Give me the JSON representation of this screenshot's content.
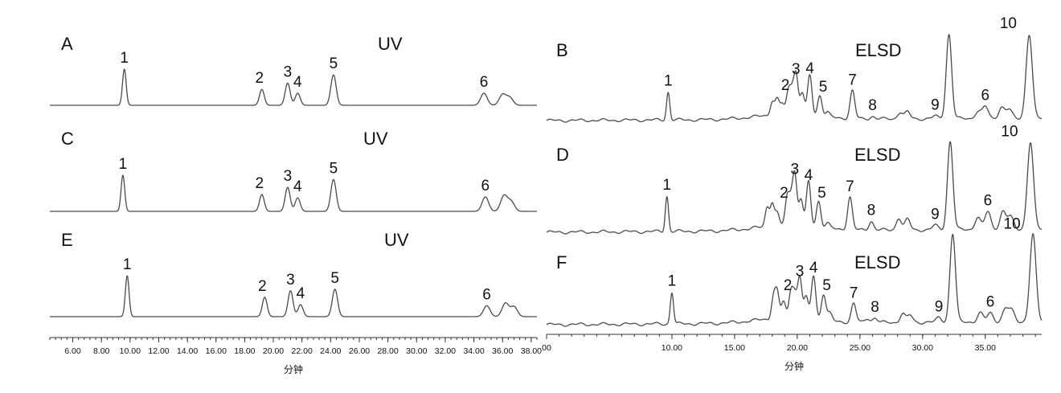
{
  "chart_data": [
    {
      "type": "line",
      "panel": "A",
      "detector": "UV",
      "axis": "left",
      "peaks": [
        {
          "label": "1",
          "t": 9.6,
          "h": 0.75
        },
        {
          "label": "2",
          "t": 19.2,
          "h": 0.33
        },
        {
          "label": "3",
          "t": 21.0,
          "h": 0.46
        },
        {
          "label": "4",
          "t": 21.7,
          "h": 0.25
        },
        {
          "label": "5",
          "t": 24.2,
          "h": 0.63
        },
        {
          "label": "6",
          "t": 34.7,
          "h": 0.25
        }
      ],
      "minor_peaks": [
        {
          "t": 36.0,
          "h": 0.22
        },
        {
          "t": 36.5,
          "h": 0.16
        }
      ]
    },
    {
      "type": "line",
      "panel": "C",
      "detector": "UV",
      "axis": "left",
      "peaks": [
        {
          "label": "1",
          "t": 9.5,
          "h": 0.75
        },
        {
          "label": "2",
          "t": 19.2,
          "h": 0.35
        },
        {
          "label": "3",
          "t": 21.0,
          "h": 0.5
        },
        {
          "label": "4",
          "t": 21.7,
          "h": 0.28
        },
        {
          "label": "5",
          "t": 24.2,
          "h": 0.66
        },
        {
          "label": "6",
          "t": 34.8,
          "h": 0.3
        }
      ],
      "minor_peaks": [
        {
          "t": 36.1,
          "h": 0.32
        },
        {
          "t": 36.6,
          "h": 0.2
        }
      ]
    },
    {
      "type": "line",
      "panel": "E",
      "detector": "UV",
      "axis": "left",
      "peaks": [
        {
          "label": "1",
          "t": 9.8,
          "h": 0.82
        },
        {
          "label": "2",
          "t": 19.4,
          "h": 0.39
        },
        {
          "label": "3",
          "t": 21.2,
          "h": 0.52
        },
        {
          "label": "4",
          "t": 21.9,
          "h": 0.24
        },
        {
          "label": "5",
          "t": 24.3,
          "h": 0.55
        },
        {
          "label": "6",
          "t": 34.9,
          "h": 0.22
        }
      ],
      "minor_peaks": [
        {
          "t": 36.2,
          "h": 0.27
        },
        {
          "t": 36.8,
          "h": 0.2
        }
      ]
    },
    {
      "type": "line",
      "panel": "B",
      "detector": "ELSD",
      "axis": "right",
      "peaks": [
        {
          "label": "1",
          "t": 9.7,
          "h": 0.33
        },
        {
          "label": "2",
          "t": 19.3,
          "h": 0.27
        },
        {
          "label": "3",
          "t": 19.9,
          "h": 0.46
        },
        {
          "label": "4",
          "t": 21.0,
          "h": 0.47
        },
        {
          "label": "5",
          "t": 21.8,
          "h": 0.25
        },
        {
          "label": "7",
          "t": 24.4,
          "h": 0.33
        },
        {
          "label": "8",
          "t": 26.0,
          "h": 0.03
        },
        {
          "label": "9",
          "t": 31.0,
          "h": 0.03
        },
        {
          "label": "6",
          "t": 35.0,
          "h": 0.14
        },
        {
          "label": "10",
          "t": 38.5,
          "h": 0.99
        }
      ],
      "minor_peaks": [
        {
          "t": 18.0,
          "h": 0.16
        },
        {
          "t": 18.4,
          "h": 0.18
        },
        {
          "t": 18.8,
          "h": 0.12
        },
        {
          "t": 19.6,
          "h": 0.25
        },
        {
          "t": 20.4,
          "h": 0.26
        },
        {
          "t": 22.4,
          "h": 0.06
        },
        {
          "t": 28.2,
          "h": 0.08
        },
        {
          "t": 28.8,
          "h": 0.08
        },
        {
          "t": 32.1,
          "h": 1.0
        },
        {
          "t": 34.4,
          "h": 0.08
        },
        {
          "t": 36.3,
          "h": 0.13
        },
        {
          "t": 36.9,
          "h": 0.1
        }
      ]
    },
    {
      "type": "line",
      "panel": "D",
      "detector": "ELSD",
      "axis": "right",
      "peaks": [
        {
          "label": "1",
          "t": 9.6,
          "h": 0.4
        },
        {
          "label": "2",
          "t": 19.2,
          "h": 0.3
        },
        {
          "label": "3",
          "t": 19.8,
          "h": 0.57
        },
        {
          "label": "4",
          "t": 20.9,
          "h": 0.5
        },
        {
          "label": "5",
          "t": 21.7,
          "h": 0.3
        },
        {
          "label": "7",
          "t": 24.2,
          "h": 0.37
        },
        {
          "label": "8",
          "t": 25.9,
          "h": 0.1
        },
        {
          "label": "9",
          "t": 31.0,
          "h": 0.05
        },
        {
          "label": "6",
          "t": 35.2,
          "h": 0.2
        },
        {
          "label": "10",
          "t": 38.6,
          "h": 0.98
        }
      ],
      "minor_peaks": [
        {
          "t": 17.6,
          "h": 0.22
        },
        {
          "t": 18.0,
          "h": 0.26
        },
        {
          "t": 18.4,
          "h": 0.14
        },
        {
          "t": 19.5,
          "h": 0.25
        },
        {
          "t": 20.3,
          "h": 0.3
        },
        {
          "t": 22.4,
          "h": 0.06
        },
        {
          "t": 28.1,
          "h": 0.14
        },
        {
          "t": 28.8,
          "h": 0.12
        },
        {
          "t": 32.2,
          "h": 1.0
        },
        {
          "t": 34.4,
          "h": 0.14
        },
        {
          "t": 36.4,
          "h": 0.2
        },
        {
          "t": 37.0,
          "h": 0.14
        }
      ]
    },
    {
      "type": "line",
      "panel": "F",
      "detector": "ELSD",
      "axis": "right",
      "peaks": [
        {
          "label": "1",
          "t": 10.0,
          "h": 0.36
        },
        {
          "label": "2",
          "t": 19.5,
          "h": 0.3
        },
        {
          "label": "3",
          "t": 20.2,
          "h": 0.46
        },
        {
          "label": "4",
          "t": 21.3,
          "h": 0.5
        },
        {
          "label": "5",
          "t": 22.1,
          "h": 0.3
        },
        {
          "label": "7",
          "t": 24.5,
          "h": 0.21
        },
        {
          "label": "8",
          "t": 26.2,
          "h": 0.05
        },
        {
          "label": "9",
          "t": 31.3,
          "h": 0.05
        },
        {
          "label": "6",
          "t": 35.4,
          "h": 0.1
        },
        {
          "label": "10",
          "t": 38.8,
          "h": 0.98
        }
      ],
      "minor_peaks": [
        {
          "t": 18.1,
          "h": 0.24
        },
        {
          "t": 18.4,
          "h": 0.28
        },
        {
          "t": 18.9,
          "h": 0.18
        },
        {
          "t": 19.8,
          "h": 0.25
        },
        {
          "t": 20.7,
          "h": 0.24
        },
        {
          "t": 22.6,
          "h": 0.08
        },
        {
          "t": 25.6,
          "h": 0.05
        },
        {
          "t": 28.4,
          "h": 0.1
        },
        {
          "t": 29.0,
          "h": 0.08
        },
        {
          "t": 32.4,
          "h": 1.0
        },
        {
          "t": 34.6,
          "h": 0.1
        },
        {
          "t": 36.6,
          "h": 0.14
        },
        {
          "t": 37.1,
          "h": 0.12
        }
      ]
    }
  ],
  "axes": {
    "left": {
      "xlabel": "分钟",
      "xlim": [
        4.4,
        38.4
      ],
      "ticks": [
        "6.00",
        "8.00",
        "10.00",
        "12.00",
        "14.00",
        "16.00",
        "18.00",
        "20.00",
        "22.00",
        "24.00",
        "26.00",
        "28.00",
        "30.00",
        "32.00",
        "34.00",
        "36.00",
        "38.00"
      ]
    },
    "right": {
      "xlabel": "分钟",
      "xlim": [
        0,
        39.5
      ],
      "ticks": [
        "00",
        "10.00",
        "15.00",
        "20.00",
        "25.00",
        "30.00",
        "35.00"
      ]
    }
  }
}
